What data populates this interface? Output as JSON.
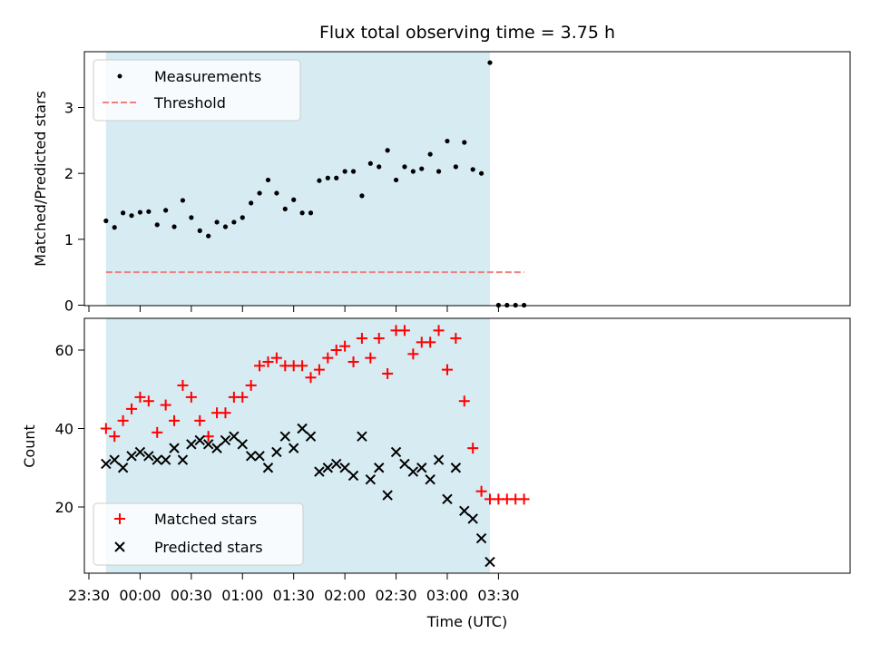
{
  "chart_data": [
    {
      "type": "scatter",
      "title": "Flux total observing time = 3.75 h",
      "ylabel": "Matched/Predicted stars",
      "ylim": [
        0,
        3.85
      ],
      "yticks": [
        "0",
        "1",
        "2",
        "3"
      ],
      "shaded_span": [
        "23:40",
        "03:25"
      ],
      "shade_color": "#add8e6",
      "legend_position": "upper-left",
      "series": [
        {
          "name": "Measurements",
          "color": "#000000",
          "marker": "dot",
          "points": [
            [
              "23:40",
              1.28
            ],
            [
              "23:45",
              1.18
            ],
            [
              "23:50",
              1.4
            ],
            [
              "23:55",
              1.36
            ],
            [
              "00:00",
              1.41
            ],
            [
              "00:05",
              1.42
            ],
            [
              "00:10",
              1.22
            ],
            [
              "00:15",
              1.44
            ],
            [
              "00:20",
              1.19
            ],
            [
              "00:25",
              1.59
            ],
            [
              "00:30",
              1.33
            ],
            [
              "00:35",
              1.13
            ],
            [
              "00:40",
              1.05
            ],
            [
              "00:45",
              1.26
            ],
            [
              "00:50",
              1.19
            ],
            [
              "00:55",
              1.26
            ],
            [
              "01:00",
              1.33
            ],
            [
              "01:05",
              1.55
            ],
            [
              "01:10",
              1.7
            ],
            [
              "01:15",
              1.9
            ],
            [
              "01:20",
              1.7
            ],
            [
              "01:25",
              1.46
            ],
            [
              "01:30",
              1.6
            ],
            [
              "01:35",
              1.4
            ],
            [
              "01:40",
              1.4
            ],
            [
              "01:45",
              1.89
            ],
            [
              "01:50",
              1.93
            ],
            [
              "01:55",
              1.93
            ],
            [
              "02:00",
              2.03
            ],
            [
              "02:05",
              2.03
            ],
            [
              "02:10",
              1.66
            ],
            [
              "02:15",
              2.15
            ],
            [
              "02:20",
              2.1
            ],
            [
              "02:25",
              2.35
            ],
            [
              "02:30",
              1.9
            ],
            [
              "02:35",
              2.1
            ],
            [
              "02:40",
              2.03
            ],
            [
              "02:45",
              2.07
            ],
            [
              "02:50",
              2.29
            ],
            [
              "02:55",
              2.03
            ],
            [
              "03:00",
              2.49
            ],
            [
              "03:05",
              2.1
            ],
            [
              "03:10",
              2.47
            ],
            [
              "03:15",
              2.06
            ],
            [
              "03:20",
              2.0
            ],
            [
              "03:25",
              3.68
            ],
            [
              "03:30",
              0.0
            ],
            [
              "03:35",
              0.0
            ],
            [
              "03:40",
              0.0
            ],
            [
              "03:45",
              0.0
            ]
          ]
        },
        {
          "name": "Threshold",
          "color": "#f08080",
          "marker": "dashed-line",
          "value": 0.5,
          "x_range": [
            "23:40",
            "03:45"
          ]
        }
      ]
    },
    {
      "type": "scatter",
      "xlabel": "Time (UTC)",
      "ylabel": "Count",
      "ylim": [
        3,
        68
      ],
      "yticks": [
        "20",
        "40",
        "60"
      ],
      "xticks": [
        "23:30",
        "00:00",
        "00:30",
        "01:00",
        "01:30",
        "02:00",
        "02:30",
        "03:00",
        "03:30"
      ],
      "shaded_span": [
        "23:40",
        "03:25"
      ],
      "shade_color": "#add8e6",
      "legend_position": "lower-left",
      "series": [
        {
          "name": "Matched stars",
          "color": "#ff0000",
          "marker": "plus",
          "points": [
            [
              "23:40",
              40
            ],
            [
              "23:45",
              38
            ],
            [
              "23:50",
              42
            ],
            [
              "23:55",
              45
            ],
            [
              "00:00",
              48
            ],
            [
              "00:05",
              47
            ],
            [
              "00:10",
              39
            ],
            [
              "00:15",
              46
            ],
            [
              "00:20",
              42
            ],
            [
              "00:25",
              51
            ],
            [
              "00:30",
              48
            ],
            [
              "00:35",
              42
            ],
            [
              "00:40",
              38
            ],
            [
              "00:45",
              44
            ],
            [
              "00:50",
              44
            ],
            [
              "00:55",
              48
            ],
            [
              "01:00",
              48
            ],
            [
              "01:05",
              51
            ],
            [
              "01:10",
              56
            ],
            [
              "01:15",
              57
            ],
            [
              "01:20",
              58
            ],
            [
              "01:25",
              56
            ],
            [
              "01:30",
              56
            ],
            [
              "01:35",
              56
            ],
            [
              "01:40",
              53
            ],
            [
              "01:45",
              55
            ],
            [
              "01:50",
              58
            ],
            [
              "01:55",
              60
            ],
            [
              "02:00",
              61
            ],
            [
              "02:05",
              57
            ],
            [
              "02:10",
              63
            ],
            [
              "02:15",
              58
            ],
            [
              "02:20",
              63
            ],
            [
              "02:25",
              54
            ],
            [
              "02:30",
              65
            ],
            [
              "02:35",
              65
            ],
            [
              "02:40",
              59
            ],
            [
              "02:45",
              62
            ],
            [
              "02:50",
              62
            ],
            [
              "02:55",
              65
            ],
            [
              "03:00",
              55
            ],
            [
              "03:05",
              63
            ],
            [
              "03:10",
              47
            ],
            [
              "03:15",
              35
            ],
            [
              "03:20",
              24
            ],
            [
              "03:25",
              22
            ],
            [
              "03:30",
              22
            ],
            [
              "03:35",
              22
            ],
            [
              "03:40",
              22
            ],
            [
              "03:45",
              22
            ]
          ]
        },
        {
          "name": "Predicted stars",
          "color": "#000000",
          "marker": "x",
          "points": [
            [
              "23:40",
              31
            ],
            [
              "23:45",
              32
            ],
            [
              "23:50",
              30
            ],
            [
              "23:55",
              33
            ],
            [
              "00:00",
              34
            ],
            [
              "00:05",
              33
            ],
            [
              "00:10",
              32
            ],
            [
              "00:15",
              32
            ],
            [
              "00:20",
              35
            ],
            [
              "00:25",
              32
            ],
            [
              "00:30",
              36
            ],
            [
              "00:35",
              37
            ],
            [
              "00:40",
              36
            ],
            [
              "00:45",
              35
            ],
            [
              "00:50",
              37
            ],
            [
              "00:55",
              38
            ],
            [
              "01:00",
              36
            ],
            [
              "01:05",
              33
            ],
            [
              "01:10",
              33
            ],
            [
              "01:15",
              30
            ],
            [
              "01:20",
              34
            ],
            [
              "01:25",
              38
            ],
            [
              "01:30",
              35
            ],
            [
              "01:35",
              40
            ],
            [
              "01:40",
              38
            ],
            [
              "01:45",
              29
            ],
            [
              "01:50",
              30
            ],
            [
              "01:55",
              31
            ],
            [
              "02:00",
              30
            ],
            [
              "02:05",
              28
            ],
            [
              "02:10",
              38
            ],
            [
              "02:15",
              27
            ],
            [
              "02:20",
              30
            ],
            [
              "02:25",
              23
            ],
            [
              "02:30",
              34
            ],
            [
              "02:35",
              31
            ],
            [
              "02:40",
              29
            ],
            [
              "02:45",
              30
            ],
            [
              "02:50",
              27
            ],
            [
              "02:55",
              32
            ],
            [
              "03:00",
              22
            ],
            [
              "03:05",
              30
            ],
            [
              "03:10",
              19
            ],
            [
              "03:15",
              17
            ],
            [
              "03:20",
              12
            ],
            [
              "03:25",
              6
            ]
          ]
        }
      ]
    }
  ]
}
